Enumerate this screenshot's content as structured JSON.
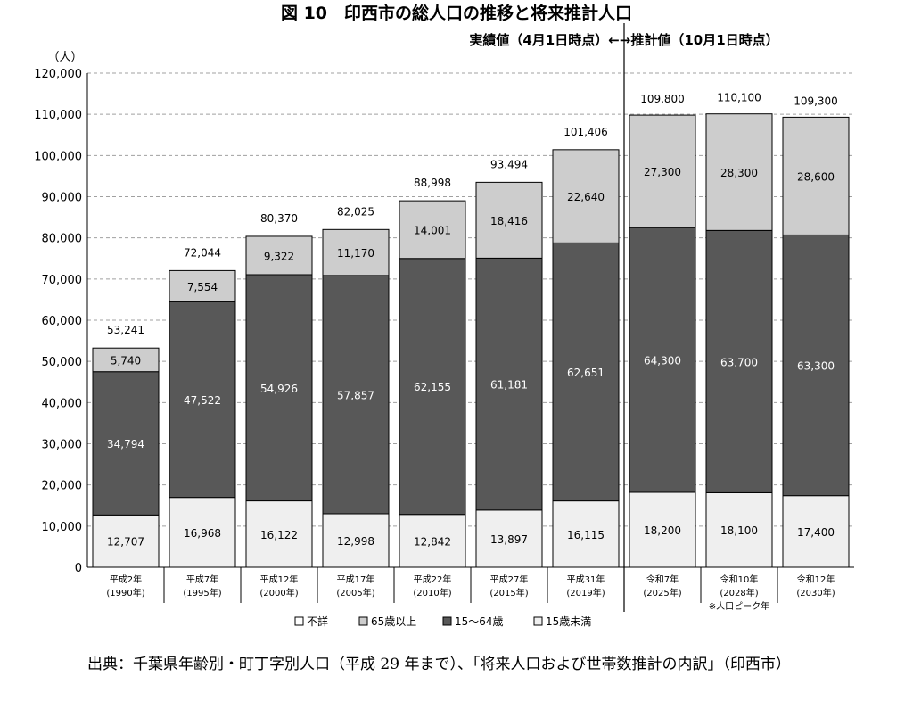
{
  "chart_data": {
    "type": "bar",
    "stacked": true,
    "y_unit": "（人）",
    "ylim": [
      0,
      120000
    ],
    "yticks": [
      0,
      10000,
      20000,
      30000,
      40000,
      50000,
      60000,
      70000,
      80000,
      90000,
      100000,
      110000,
      120000
    ],
    "ytick_labels": [
      "0",
      "10,000",
      "20,000",
      "30,000",
      "40,000",
      "50,000",
      "60,000",
      "70,000",
      "80,000",
      "90,000",
      "100,000",
      "110,000",
      "120,000"
    ],
    "grid": "dashed horizontal",
    "categories": [
      [
        "平成2年",
        "(1990年)"
      ],
      [
        "平成7年",
        "(1995年)"
      ],
      [
        "平成12年",
        "(2000年)"
      ],
      [
        "平成17年",
        "(2005年)"
      ],
      [
        "平成22年",
        "(2010年)"
      ],
      [
        "平成27年",
        "(2015年)"
      ],
      [
        "平成31年",
        "(2019年)"
      ],
      [
        "令和7年",
        "(2025年)"
      ],
      [
        "令和10年",
        "(2028年)"
      ],
      [
        "令和12年",
        "(2030年)"
      ]
    ],
    "category_note": "※人口ピーク年",
    "category_note_index": 8,
    "series": [
      {
        "name": "15歳未満",
        "color": "#efefef",
        "values": [
          12707,
          16968,
          16122,
          12998,
          12842,
          13897,
          16115,
          18200,
          18100,
          17400
        ],
        "labels": [
          "12,707",
          "16,968",
          "16,122",
          "12,998",
          "12,842",
          "13,897",
          "16,115",
          "18,200",
          "18,100",
          "17,400"
        ],
        "label_color": "#000000"
      },
      {
        "name": "15～64歳",
        "color": "#585858",
        "values": [
          34794,
          47522,
          54926,
          57857,
          62155,
          61181,
          62651,
          64300,
          63700,
          63300
        ],
        "labels": [
          "34,794",
          "47,522",
          "54,926",
          "57,857",
          "62,155",
          "61,181",
          "62,651",
          "64,300",
          "63,700",
          "63,300"
        ],
        "label_color": "#ffffff"
      },
      {
        "name": "65歳以上",
        "color": "#cdcdcd",
        "values": [
          5740,
          7554,
          9322,
          11170,
          14001,
          18416,
          22640,
          27300,
          28300,
          28600
        ],
        "labels": [
          "5,740",
          "7,554",
          "9,322",
          "11,170",
          "14,001",
          "18,416",
          "22,640",
          "27,300",
          "28,300",
          "28,600"
        ],
        "label_color": "#000000"
      },
      {
        "name": "不詳",
        "color": "#ffffff",
        "values": [
          0,
          0,
          0,
          0,
          0,
          0,
          0,
          0,
          0,
          0
        ],
        "labels": [],
        "label_color": "#000000"
      }
    ],
    "totals": [
      53241,
      72044,
      80370,
      82025,
      88998,
      93494,
      101406,
      109800,
      110100,
      109300
    ],
    "total_labels": [
      "53,241",
      "72,044",
      "80,370",
      "82,025",
      "88,998",
      "93,494",
      "101,406",
      "109,800",
      "110,100",
      "109,300"
    ],
    "period_label": "実績値（4月1日時点）←→推計値（10月1日時点）",
    "divider_after_index": 6,
    "legend": [
      "不詳",
      "65歳以上",
      "15～64歳",
      "15歳未満"
    ],
    "legend_position": "bottom"
  },
  "source_text": "出典：千葉県年齢別・町丁字別人口（平成 29 年まで）、「将来人口および世帯数推計の内訳」（印西市）",
  "caption": "図 10　印西市の総人口の推移と将来推計人口"
}
